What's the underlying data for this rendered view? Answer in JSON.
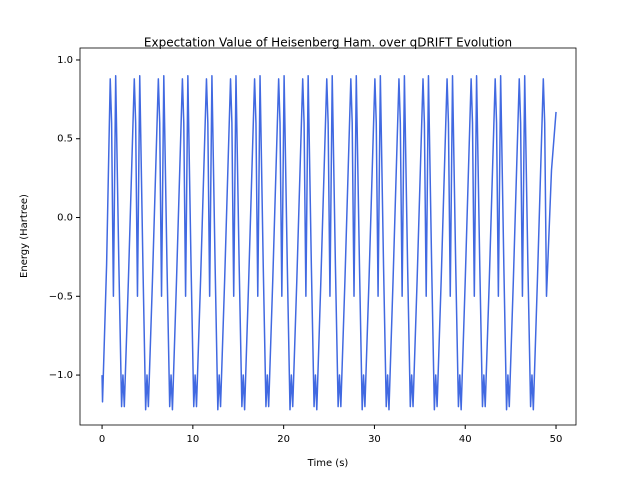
{
  "chart_data": {
    "type": "line",
    "title": "Expectation Value of Heisenberg Ham. over qDRIFT Evolution",
    "x_label": "Time (s)",
    "y_label": "Energy (Hartree)",
    "x": [
      0,
      0.05,
      0.5,
      0.9,
      1.05,
      1.25,
      1.5,
      1.85,
      2.15,
      2.3,
      2.45,
      2.9,
      3.55,
      3.7,
      3.9,
      4.15,
      4.5,
      4.8,
      4.95,
      5.1,
      5.55,
      6.2,
      6.35,
      6.55,
      6.8,
      7.15,
      7.45,
      7.6,
      7.75,
      8.2,
      8.85,
      9.0,
      9.2,
      9.45,
      9.8,
      10.1,
      10.25,
      10.4,
      10.85,
      11.5,
      11.65,
      11.85,
      12.1,
      12.45,
      12.75,
      12.9,
      13.05,
      13.5,
      14.15,
      14.3,
      14.5,
      14.75,
      15.1,
      15.4,
      15.55,
      15.7,
      16.15,
      16.8,
      16.95,
      17.15,
      17.4,
      17.75,
      18.05,
      18.2,
      18.35,
      18.8,
      19.45,
      19.6,
      19.8,
      20.05,
      20.4,
      20.7,
      20.85,
      21.0,
      21.45,
      22.1,
      22.25,
      22.45,
      22.7,
      23.05,
      23.35,
      23.5,
      23.65,
      24.1,
      24.75,
      24.9,
      25.1,
      25.35,
      25.7,
      26.0,
      26.15,
      26.3,
      26.75,
      27.4,
      27.55,
      27.75,
      28.0,
      28.35,
      28.65,
      28.8,
      28.95,
      29.4,
      30.05,
      30.2,
      30.4,
      30.65,
      31.0,
      31.3,
      31.45,
      31.6,
      32.05,
      32.7,
      32.85,
      33.05,
      33.3,
      33.65,
      33.95,
      34.1,
      34.25,
      34.7,
      35.35,
      35.5,
      35.7,
      35.95,
      36.3,
      36.6,
      36.75,
      36.9,
      37.35,
      38.0,
      38.15,
      38.35,
      38.6,
      38.95,
      39.25,
      39.4,
      39.55,
      40.0,
      40.65,
      40.8,
      41.0,
      41.25,
      41.6,
      41.9,
      42.05,
      42.2,
      42.65,
      43.3,
      43.45,
      43.65,
      43.9,
      44.25,
      44.55,
      44.7,
      44.85,
      45.3,
      45.95,
      46.1,
      46.3,
      46.55,
      46.9,
      47.2,
      47.35,
      47.5,
      47.95,
      48.6,
      48.75,
      48.95,
      49.5,
      50.0
    ],
    "series": [
      {
        "name": "Energy",
        "color": "#4169e1",
        "values": [
          -1.0,
          -1.17,
          -0.3,
          0.88,
          0.6,
          -0.5,
          0.9,
          -0.3,
          -1.2,
          -1.0,
          -1.2,
          -0.4,
          0.88,
          0.6,
          -0.5,
          0.9,
          -0.3,
          -1.22,
          -1.0,
          -1.2,
          -0.4,
          0.88,
          0.6,
          -0.5,
          0.9,
          -0.3,
          -1.2,
          -1.0,
          -1.22,
          -0.4,
          0.88,
          0.6,
          -0.5,
          0.9,
          -0.3,
          -1.2,
          -1.0,
          -1.2,
          -0.4,
          0.88,
          0.6,
          -0.5,
          0.9,
          -0.3,
          -1.22,
          -1.0,
          -1.2,
          -0.4,
          0.88,
          0.6,
          -0.5,
          0.9,
          -0.3,
          -1.2,
          -1.0,
          -1.22,
          -0.4,
          0.88,
          0.6,
          -0.5,
          0.9,
          -0.3,
          -1.2,
          -1.0,
          -1.2,
          -0.4,
          0.88,
          0.6,
          -0.5,
          0.9,
          -0.3,
          -1.22,
          -1.0,
          -1.2,
          -0.4,
          0.88,
          0.6,
          -0.5,
          0.9,
          -0.3,
          -1.2,
          -1.0,
          -1.22,
          -0.4,
          0.88,
          0.6,
          -0.5,
          0.9,
          -0.3,
          -1.2,
          -1.0,
          -1.2,
          -0.4,
          0.88,
          0.6,
          -0.5,
          0.9,
          -0.3,
          -1.22,
          -1.0,
          -1.2,
          -0.4,
          0.88,
          0.6,
          -0.5,
          0.9,
          -0.3,
          -1.2,
          -1.0,
          -1.22,
          -0.4,
          0.88,
          0.6,
          -0.5,
          0.9,
          -0.3,
          -1.2,
          -1.0,
          -1.2,
          -0.4,
          0.88,
          0.6,
          -0.5,
          0.9,
          -0.3,
          -1.22,
          -1.0,
          -1.2,
          -0.4,
          0.88,
          0.6,
          -0.5,
          0.9,
          -0.3,
          -1.2,
          -1.0,
          -1.22,
          -0.4,
          0.88,
          0.6,
          -0.5,
          0.9,
          -0.3,
          -1.2,
          -1.0,
          -1.2,
          -0.4,
          0.88,
          0.6,
          -0.5,
          0.9,
          -0.3,
          -1.22,
          -1.0,
          -1.2,
          -0.4,
          0.88,
          0.6,
          -0.5,
          0.9,
          -0.3,
          -1.2,
          -1.0,
          -1.22,
          -0.4,
          0.88,
          0.6,
          -0.5,
          0.3,
          0.67
        ]
      }
    ],
    "xlim": [
      -2.43,
      52.2
    ],
    "ylim": [
      -1.317,
      1.076
    ],
    "xticks": [
      0,
      10,
      20,
      30,
      40,
      50
    ],
    "yticks": [
      {
        "value": -1.0,
        "label": "−1.0"
      },
      {
        "value": -0.5,
        "label": "−0.5"
      },
      {
        "value": 0.0,
        "label": "0.0"
      },
      {
        "value": 0.5,
        "label": "0.5"
      },
      {
        "value": 1.0,
        "label": "1.0"
      }
    ],
    "grid": false
  }
}
